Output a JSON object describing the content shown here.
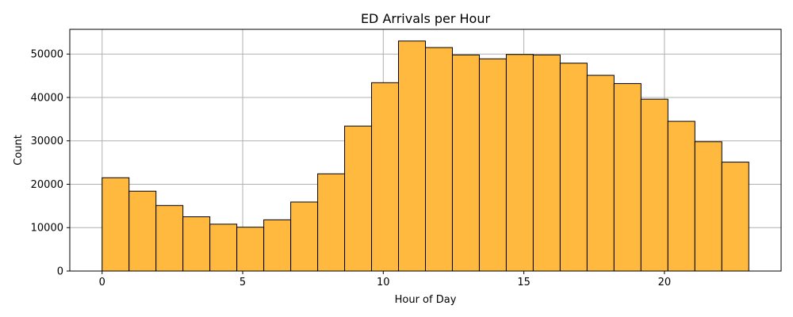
{
  "chart_data": {
    "type": "bar",
    "title": "ED Arrivals per Hour",
    "xlabel": "Hour of Day",
    "ylabel": "Count",
    "bin_edges": [
      0,
      0.9583,
      1.9167,
      2.875,
      3.8333,
      4.7917,
      5.75,
      6.7083,
      7.6667,
      8.625,
      9.5833,
      10.5417,
      11.5,
      12.4583,
      13.4167,
      14.375,
      15.3333,
      16.2917,
      17.25,
      18.2083,
      19.1667,
      20.125,
      21.0833,
      22.0417,
      23
    ],
    "values": [
      21500,
      18400,
      15100,
      12500,
      10800,
      10100,
      11800,
      15900,
      22400,
      33400,
      43400,
      53000,
      51500,
      49800,
      48900,
      49900,
      49800,
      47900,
      45100,
      43200,
      39600,
      34500,
      29800,
      25100
    ],
    "xlim": [
      -1.15,
      24.15
    ],
    "ylim": [
      0,
      55700
    ],
    "x_ticks": [
      0,
      5,
      10,
      15,
      20
    ],
    "y_ticks": [
      0,
      10000,
      20000,
      30000,
      40000,
      50000
    ],
    "grid": true,
    "bar_color": "#ffb93e",
    "edge_color": "#000000"
  }
}
